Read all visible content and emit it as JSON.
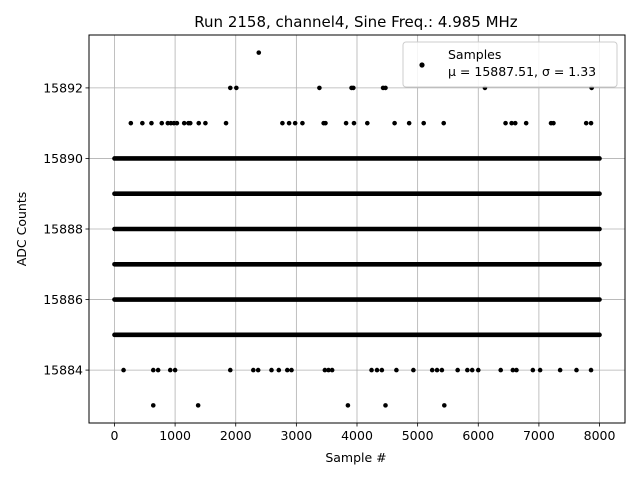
{
  "chart_data": {
    "type": "scatter",
    "title": "Run 2158, channel4, Sine Freq.: 4.985 MHz",
    "xlabel": "Sample #",
    "ylabel": "ADC Counts",
    "xlim": [
      -420,
      8420
    ],
    "ylim": [
      15882.5,
      15893.5
    ],
    "xticks": [
      0,
      1000,
      2000,
      3000,
      4000,
      5000,
      6000,
      7000,
      8000
    ],
    "xtick_labels": [
      "0",
      "1000",
      "2000",
      "3000",
      "4000",
      "5000",
      "6000",
      "7000",
      "8000"
    ],
    "yticks": [
      15884,
      15886,
      15888,
      15890,
      15892
    ],
    "ytick_labels": [
      "15884",
      "15886",
      "15888",
      "15890",
      "15892"
    ],
    "grid": true,
    "marker_color": "#000000",
    "legend": {
      "placement": "top-right",
      "series_label": "Samples",
      "stats_label": "μ = 15887.51, σ = 1.33"
    },
    "series": [
      {
        "name": "Samples",
        "dense_levels": [
          {
            "y": 15885,
            "x_start": 0,
            "x_end": 8000
          },
          {
            "y": 15886,
            "x_start": 0,
            "x_end": 8000
          },
          {
            "y": 15887,
            "x_start": 0,
            "x_end": 8000
          },
          {
            "y": 15888,
            "x_start": 0,
            "x_end": 8000
          },
          {
            "y": 15889,
            "x_start": 0,
            "x_end": 8000
          },
          {
            "y": 15890,
            "x_start": 0,
            "x_end": 8000
          }
        ],
        "points": [
          {
            "x": 640,
            "y": 15883
          },
          {
            "x": 1380,
            "y": 15883
          },
          {
            "x": 3850,
            "y": 15883
          },
          {
            "x": 4470,
            "y": 15883
          },
          {
            "x": 5440,
            "y": 15883
          },
          {
            "x": 150,
            "y": 15884
          },
          {
            "x": 640,
            "y": 15884
          },
          {
            "x": 720,
            "y": 15884
          },
          {
            "x": 920,
            "y": 15884
          },
          {
            "x": 1000,
            "y": 15884
          },
          {
            "x": 1910,
            "y": 15884
          },
          {
            "x": 2290,
            "y": 15884
          },
          {
            "x": 2370,
            "y": 15884
          },
          {
            "x": 2590,
            "y": 15884
          },
          {
            "x": 2710,
            "y": 15884
          },
          {
            "x": 2850,
            "y": 15884
          },
          {
            "x": 2920,
            "y": 15884
          },
          {
            "x": 3470,
            "y": 15884
          },
          {
            "x": 3530,
            "y": 15884
          },
          {
            "x": 3590,
            "y": 15884
          },
          {
            "x": 4240,
            "y": 15884
          },
          {
            "x": 4330,
            "y": 15884
          },
          {
            "x": 4410,
            "y": 15884
          },
          {
            "x": 4650,
            "y": 15884
          },
          {
            "x": 4930,
            "y": 15884
          },
          {
            "x": 5240,
            "y": 15884
          },
          {
            "x": 5320,
            "y": 15884
          },
          {
            "x": 5400,
            "y": 15884
          },
          {
            "x": 5660,
            "y": 15884
          },
          {
            "x": 5820,
            "y": 15884
          },
          {
            "x": 5900,
            "y": 15884
          },
          {
            "x": 6000,
            "y": 15884
          },
          {
            "x": 6370,
            "y": 15884
          },
          {
            "x": 6570,
            "y": 15884
          },
          {
            "x": 6630,
            "y": 15884
          },
          {
            "x": 6900,
            "y": 15884
          },
          {
            "x": 7020,
            "y": 15884
          },
          {
            "x": 7350,
            "y": 15884
          },
          {
            "x": 7620,
            "y": 15884
          },
          {
            "x": 7860,
            "y": 15884
          },
          {
            "x": 270,
            "y": 15891
          },
          {
            "x": 460,
            "y": 15891
          },
          {
            "x": 610,
            "y": 15891
          },
          {
            "x": 780,
            "y": 15891
          },
          {
            "x": 880,
            "y": 15891
          },
          {
            "x": 930,
            "y": 15891
          },
          {
            "x": 980,
            "y": 15891
          },
          {
            "x": 1030,
            "y": 15891
          },
          {
            "x": 1150,
            "y": 15891
          },
          {
            "x": 1220,
            "y": 15891
          },
          {
            "x": 1250,
            "y": 15891
          },
          {
            "x": 1390,
            "y": 15891
          },
          {
            "x": 1500,
            "y": 15891
          },
          {
            "x": 1840,
            "y": 15891
          },
          {
            "x": 2770,
            "y": 15891
          },
          {
            "x": 2880,
            "y": 15891
          },
          {
            "x": 2980,
            "y": 15891
          },
          {
            "x": 3100,
            "y": 15891
          },
          {
            "x": 3450,
            "y": 15891
          },
          {
            "x": 3480,
            "y": 15891
          },
          {
            "x": 3820,
            "y": 15891
          },
          {
            "x": 3950,
            "y": 15891
          },
          {
            "x": 4170,
            "y": 15891
          },
          {
            "x": 4620,
            "y": 15891
          },
          {
            "x": 4860,
            "y": 15891
          },
          {
            "x": 5100,
            "y": 15891
          },
          {
            "x": 5430,
            "y": 15891
          },
          {
            "x": 6450,
            "y": 15891
          },
          {
            "x": 6550,
            "y": 15891
          },
          {
            "x": 6610,
            "y": 15891
          },
          {
            "x": 6790,
            "y": 15891
          },
          {
            "x": 7200,
            "y": 15891
          },
          {
            "x": 7240,
            "y": 15891
          },
          {
            "x": 7780,
            "y": 15891
          },
          {
            "x": 7860,
            "y": 15891
          },
          {
            "x": 1910,
            "y": 15892
          },
          {
            "x": 2010,
            "y": 15892
          },
          {
            "x": 3380,
            "y": 15892
          },
          {
            "x": 3910,
            "y": 15892
          },
          {
            "x": 3940,
            "y": 15892
          },
          {
            "x": 4430,
            "y": 15892
          },
          {
            "x": 4470,
            "y": 15892
          },
          {
            "x": 6110,
            "y": 15892
          },
          {
            "x": 7870,
            "y": 15892
          },
          {
            "x": 2380,
            "y": 15893
          }
        ]
      }
    ]
  }
}
